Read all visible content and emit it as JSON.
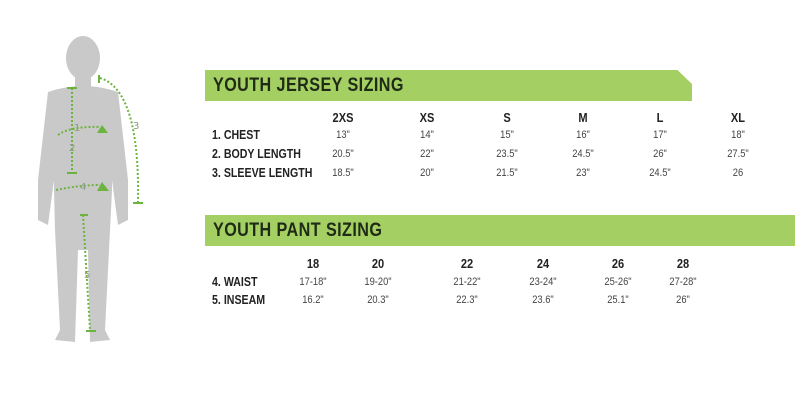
{
  "figure": {
    "markers": [
      "1",
      "2",
      "3",
      "4",
      "5"
    ],
    "silhouette_color": "#c9c9c9",
    "marker_color": "#6db33f"
  },
  "accent_color": "#a4cf62",
  "jersey": {
    "title": "YOUTH JERSEY SIZING",
    "sizes": [
      "2XS",
      "XS",
      "S",
      "M",
      "L",
      "XL"
    ],
    "rows": [
      {
        "label": "1. CHEST",
        "values": [
          "13\"",
          "14\"",
          "15\"",
          "16\"",
          "17\"",
          "18\""
        ]
      },
      {
        "label": "2. BODY LENGTH",
        "values": [
          "20.5\"",
          "22\"",
          "23.5\"",
          "24.5\"",
          "26\"",
          "27.5\""
        ]
      },
      {
        "label": "3. SLEEVE LENGTH",
        "values": [
          "18.5\"",
          "20\"",
          "21.5\"",
          "23\"",
          "24.5\"",
          "26"
        ]
      }
    ]
  },
  "pant": {
    "title": "YOUTH PANT SIZING",
    "sizes": [
      "18",
      "20",
      "22",
      "24",
      "26",
      "28"
    ],
    "rows": [
      {
        "label": "4. WAIST",
        "values": [
          "17-18\"",
          "19-20\"",
          "21-22\"",
          "23-24\"",
          "25-26\"",
          "27-28\""
        ]
      },
      {
        "label": "5. INSEAM",
        "values": [
          "16.2\"",
          "20.3\"",
          "22.3\"",
          "23.6\"",
          "25.1\"",
          "26\""
        ]
      }
    ]
  }
}
